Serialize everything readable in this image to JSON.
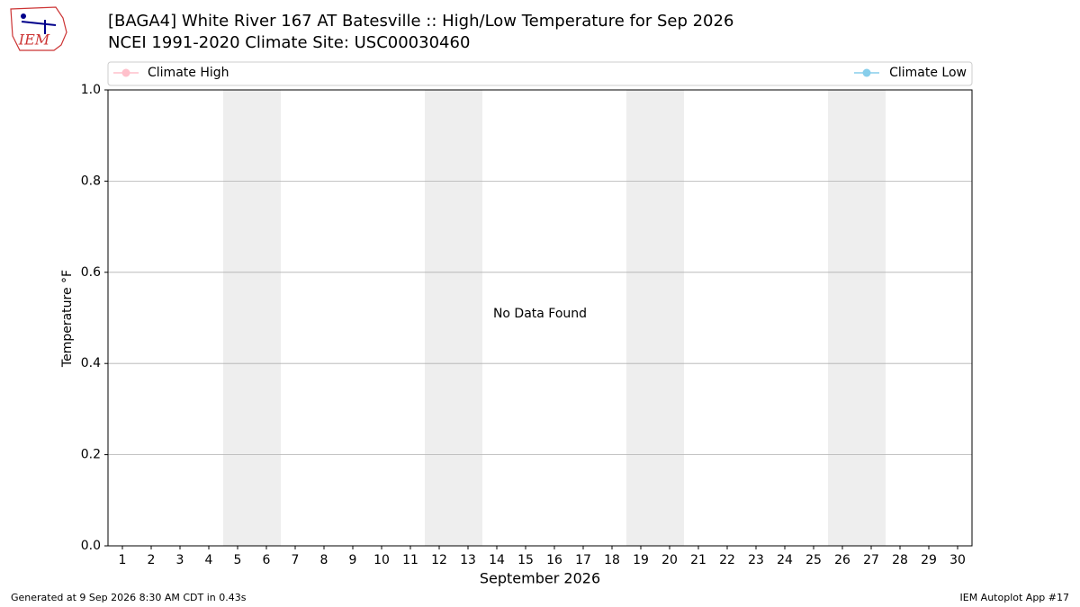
{
  "chart_data": {
    "type": "line",
    "title": "[BAGA4] White River 167 AT Batesville :: High/Low Temperature for Sep 2026",
    "subtitle": "NCEI 1991-2020 Climate Site: USC00030460",
    "logo_text": "IEM",
    "x_label": "September 2026",
    "y_label": "Temperature °F",
    "annotation": "No Data Found",
    "footer_left": "Generated at 9 Sep 2026 8:30 AM CDT in 0.43s",
    "footer_right": "IEM Autoplot App #17",
    "x": [
      1,
      2,
      3,
      4,
      5,
      6,
      7,
      8,
      9,
      10,
      11,
      12,
      13,
      14,
      15,
      16,
      17,
      18,
      19,
      20,
      21,
      22,
      23,
      24,
      25,
      26,
      27,
      28,
      29,
      30
    ],
    "series": [
      {
        "name": "Climate High",
        "color": "#ffc0cb",
        "values": [
          null,
          null,
          null,
          null,
          null,
          null,
          null,
          null,
          null,
          null,
          null,
          null,
          null,
          null,
          null,
          null,
          null,
          null,
          null,
          null,
          null,
          null,
          null,
          null,
          null,
          null,
          null,
          null,
          null,
          null
        ]
      },
      {
        "name": "Climate Low",
        "color": "#87ceeb",
        "values": [
          null,
          null,
          null,
          null,
          null,
          null,
          null,
          null,
          null,
          null,
          null,
          null,
          null,
          null,
          null,
          null,
          null,
          null,
          null,
          null,
          null,
          null,
          null,
          null,
          null,
          null,
          null,
          null,
          null,
          null
        ]
      }
    ],
    "shaded_days": [
      5,
      6,
      12,
      13,
      19,
      20,
      26,
      27
    ],
    "shade_color": "#eeeeee",
    "xlim": [
      0.5,
      30.5
    ],
    "xticks": [
      1,
      2,
      3,
      4,
      5,
      6,
      7,
      8,
      9,
      10,
      11,
      12,
      13,
      14,
      15,
      16,
      17,
      18,
      19,
      20,
      21,
      22,
      23,
      24,
      25,
      26,
      27,
      28,
      29,
      30
    ],
    "ylim": [
      0,
      1
    ],
    "yticks": [
      {
        "value": 0,
        "label": "0.0"
      },
      0.2,
      0.4,
      0.6,
      0.8,
      {
        "value": 1,
        "label": "1.0"
      }
    ],
    "grid": true
  }
}
